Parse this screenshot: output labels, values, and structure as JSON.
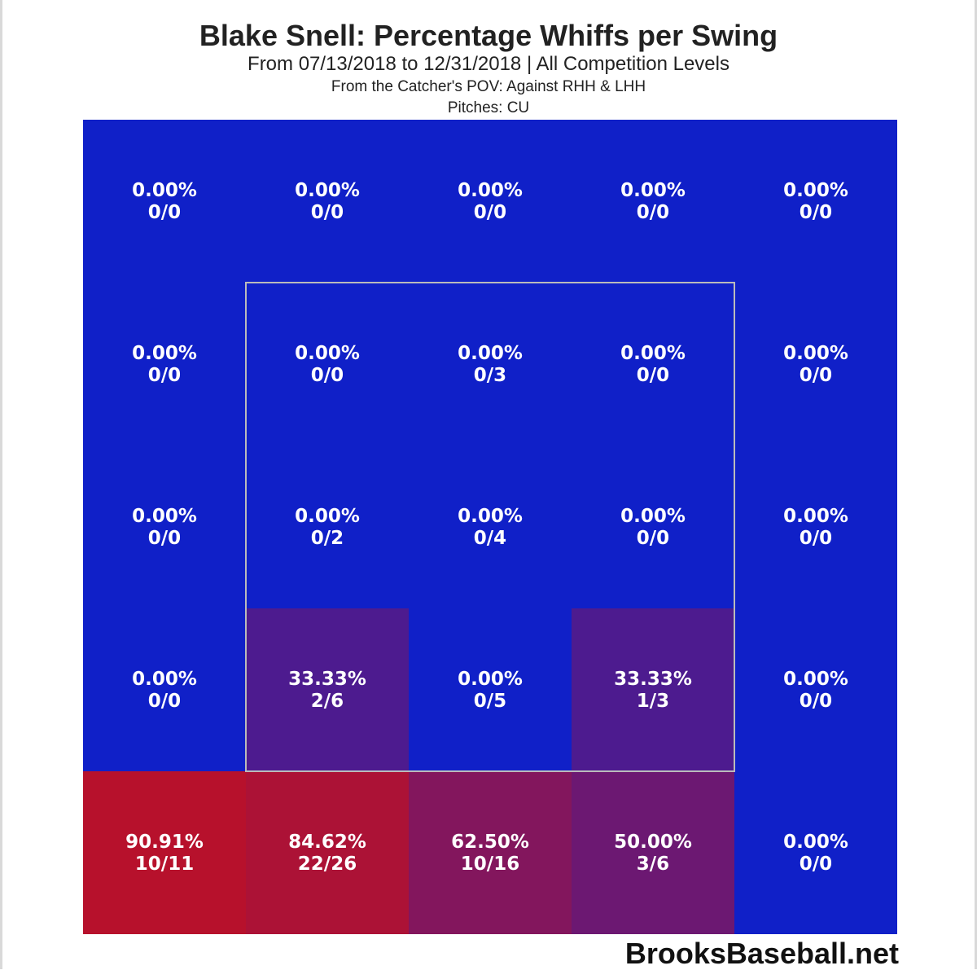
{
  "title": "Blake Snell: Percentage Whiffs per Swing",
  "subtitle": "From 07/13/2018 to 12/31/2018 | All Competition Levels",
  "pov_line": "From the Catcher's POV:   Against RHH & LHH",
  "pitches_line": "Pitches:  CU",
  "brand": "BrooksBaseball.net",
  "colors": {
    "low": "#1020c8",
    "high": "#c8101c",
    "strike_zone_border": "#bbbbbb",
    "cell_text": "#ffffff"
  },
  "chart_data": {
    "type": "heatmap",
    "rows": 5,
    "cols": 5,
    "strike_zone": "inner 3x3 cells (rows 2-4, cols 2-4)",
    "cells": [
      [
        {
          "pct": "0.00%",
          "ratio": "0/0",
          "value": 0
        },
        {
          "pct": "0.00%",
          "ratio": "0/0",
          "value": 0
        },
        {
          "pct": "0.00%",
          "ratio": "0/0",
          "value": 0
        },
        {
          "pct": "0.00%",
          "ratio": "0/0",
          "value": 0
        },
        {
          "pct": "0.00%",
          "ratio": "0/0",
          "value": 0
        }
      ],
      [
        {
          "pct": "0.00%",
          "ratio": "0/0",
          "value": 0
        },
        {
          "pct": "0.00%",
          "ratio": "0/0",
          "value": 0
        },
        {
          "pct": "0.00%",
          "ratio": "0/3",
          "value": 0
        },
        {
          "pct": "0.00%",
          "ratio": "0/0",
          "value": 0
        },
        {
          "pct": "0.00%",
          "ratio": "0/0",
          "value": 0
        }
      ],
      [
        {
          "pct": "0.00%",
          "ratio": "0/0",
          "value": 0
        },
        {
          "pct": "0.00%",
          "ratio": "0/2",
          "value": 0
        },
        {
          "pct": "0.00%",
          "ratio": "0/4",
          "value": 0
        },
        {
          "pct": "0.00%",
          "ratio": "0/0",
          "value": 0
        },
        {
          "pct": "0.00%",
          "ratio": "0/0",
          "value": 0
        }
      ],
      [
        {
          "pct": "0.00%",
          "ratio": "0/0",
          "value": 0
        },
        {
          "pct": "33.33%",
          "ratio": "2/6",
          "value": 33.33
        },
        {
          "pct": "0.00%",
          "ratio": "0/5",
          "value": 0
        },
        {
          "pct": "33.33%",
          "ratio": "1/3",
          "value": 33.33
        },
        {
          "pct": "0.00%",
          "ratio": "0/0",
          "value": 0
        }
      ],
      [
        {
          "pct": "90.91%",
          "ratio": "10/11",
          "value": 90.91
        },
        {
          "pct": "84.62%",
          "ratio": "22/26",
          "value": 84.62
        },
        {
          "pct": "62.50%",
          "ratio": "10/16",
          "value": 62.5
        },
        {
          "pct": "50.00%",
          "ratio": "3/6",
          "value": 50.0
        },
        {
          "pct": "0.00%",
          "ratio": "0/0",
          "value": 0
        }
      ]
    ]
  }
}
